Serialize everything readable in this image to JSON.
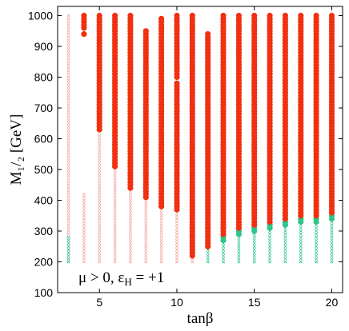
{
  "chart_data": {
    "type": "scatter",
    "title": "",
    "xlabel": "tanβ",
    "ylabel": "M₁/₂ [GeV]",
    "xlim": [
      2.3,
      20.7
    ],
    "ylim": [
      100,
      1030
    ],
    "xticks": [
      5,
      10,
      15,
      20
    ],
    "yticks": [
      100,
      200,
      300,
      400,
      500,
      600,
      700,
      800,
      900,
      1000
    ],
    "xtick_labels": [
      "5",
      "10",
      "15",
      "20"
    ],
    "ytick_labels": [
      "100",
      "200",
      "300",
      "400",
      "500",
      "600",
      "700",
      "800",
      "900",
      "1000"
    ],
    "grid": false,
    "annotation": "μ > 0, ε_H = +1",
    "grid_step": {
      "x": 1,
      "y": 10
    },
    "series": [
      {
        "marker": "x",
        "color": "#f4a3a3",
        "columns": [
          {
            "x": 3,
            "ranges": [
              [
                200,
                280
              ],
              [
                290,
                1000
              ]
            ]
          },
          {
            "x": 4,
            "ranges": [
              [
                200,
                420
              ]
            ]
          },
          {
            "x": 5,
            "ranges": [
              [
                200,
                620
              ]
            ]
          },
          {
            "x": 6,
            "ranges": [
              [
                200,
                500
              ]
            ]
          },
          {
            "x": 7,
            "ranges": [
              [
                200,
                430
              ]
            ]
          },
          {
            "x": 8,
            "ranges": [
              [
                200,
                400
              ]
            ]
          },
          {
            "x": 9,
            "ranges": [
              [
                200,
                370
              ]
            ]
          },
          {
            "x": 10,
            "ranges": [
              [
                200,
                360
              ]
            ]
          },
          {
            "x": 11,
            "ranges": [
              [
                200,
                220
              ]
            ]
          }
        ]
      },
      {
        "marker": "x",
        "color": "#2ec48a",
        "columns": [
          {
            "x": 3,
            "ranges": [
              [
                200,
                280
              ]
            ]
          },
          {
            "x": 12,
            "ranges": [
              [
                200,
                240
              ]
            ]
          },
          {
            "x": 13,
            "ranges": [
              [
                200,
                260
              ]
            ]
          },
          {
            "x": 14,
            "ranges": [
              [
                200,
                280
              ]
            ]
          },
          {
            "x": 15,
            "ranges": [
              [
                200,
                290
              ]
            ]
          },
          {
            "x": 16,
            "ranges": [
              [
                200,
                300
              ]
            ]
          },
          {
            "x": 17,
            "ranges": [
              [
                200,
                310
              ]
            ]
          },
          {
            "x": 18,
            "ranges": [
              [
                200,
                320
              ]
            ]
          },
          {
            "x": 19,
            "ranges": [
              [
                200,
                320
              ]
            ]
          },
          {
            "x": 20,
            "ranges": [
              [
                200,
                330
              ]
            ]
          }
        ]
      },
      {
        "marker": "o",
        "color": "#2ec48a",
        "columns": [
          {
            "x": 13,
            "ranges": [
              [
                270,
                280
              ]
            ]
          },
          {
            "x": 14,
            "ranges": [
              [
                290,
                300
              ]
            ]
          },
          {
            "x": 15,
            "ranges": [
              [
                300,
                310
              ]
            ]
          },
          {
            "x": 16,
            "ranges": [
              [
                310,
                320
              ]
            ]
          },
          {
            "x": 17,
            "ranges": [
              [
                320,
                330
              ]
            ]
          },
          {
            "x": 18,
            "ranges": [
              [
                330,
                340
              ]
            ]
          },
          {
            "x": 19,
            "ranges": [
              [
                330,
                340
              ]
            ]
          },
          {
            "x": 20,
            "ranges": [
              [
                340,
                350
              ]
            ]
          }
        ]
      },
      {
        "marker": "o",
        "color": "#f03010",
        "columns": [
          {
            "x": 4,
            "ranges": [
              [
                940,
                940
              ],
              [
                960,
                1000
              ]
            ]
          },
          {
            "x": 5,
            "ranges": [
              [
                630,
                1000
              ]
            ]
          },
          {
            "x": 6,
            "ranges": [
              [
                510,
                1000
              ]
            ]
          },
          {
            "x": 7,
            "ranges": [
              [
                440,
                1000
              ]
            ]
          },
          {
            "x": 8,
            "ranges": [
              [
                410,
                950
              ]
            ]
          },
          {
            "x": 9,
            "ranges": [
              [
                380,
                990
              ]
            ]
          },
          {
            "x": 10,
            "ranges": [
              [
                370,
                780
              ],
              [
                800,
                1000
              ]
            ]
          },
          {
            "x": 11,
            "ranges": [
              [
                220,
                1000
              ]
            ]
          },
          {
            "x": 12,
            "ranges": [
              [
                250,
                940
              ]
            ]
          },
          {
            "x": 13,
            "ranges": [
              [
                290,
                1000
              ]
            ]
          },
          {
            "x": 14,
            "ranges": [
              [
                310,
                1000
              ]
            ]
          },
          {
            "x": 15,
            "ranges": [
              [
                320,
                1000
              ]
            ]
          },
          {
            "x": 16,
            "ranges": [
              [
                330,
                1000
              ]
            ]
          },
          {
            "x": 17,
            "ranges": [
              [
                340,
                1000
              ]
            ]
          },
          {
            "x": 18,
            "ranges": [
              [
                350,
                1000
              ]
            ]
          },
          {
            "x": 19,
            "ranges": [
              [
                350,
                1000
              ]
            ]
          },
          {
            "x": 20,
            "ranges": [
              [
                360,
                1000
              ]
            ]
          }
        ]
      }
    ]
  }
}
